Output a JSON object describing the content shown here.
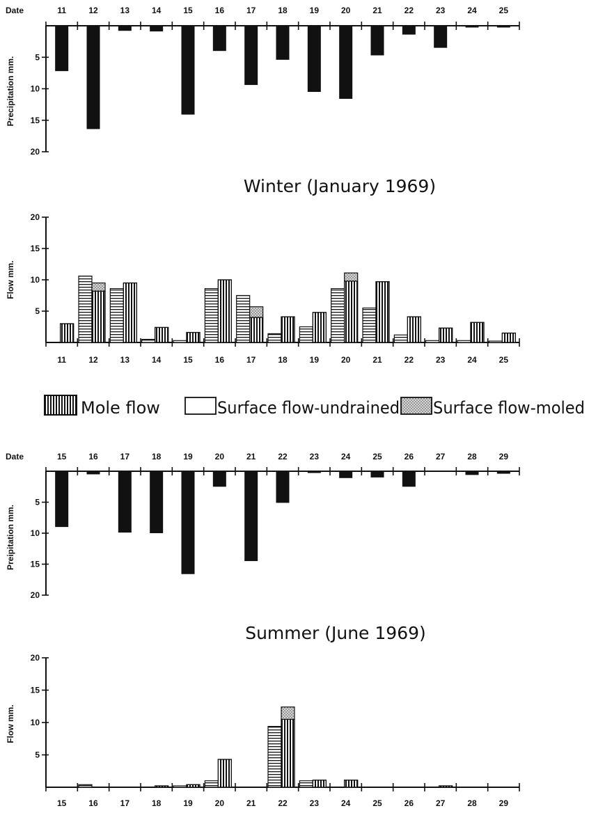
{
  "legend": {
    "mole_flow": "Mole flow",
    "surface_undrained": "Surface flow-undrained",
    "surface_moled": "Surface flow-moled"
  },
  "colors": {
    "ink": "#111111",
    "paper": "#ffffff",
    "stipple": "#9a9a9a"
  },
  "chart_data": [
    {
      "type": "bar",
      "panel": "winter-precipitation",
      "ylabel": "Precipitation mm.",
      "date_label": "Date",
      "categories": [
        "11",
        "12",
        "13",
        "14",
        "15",
        "16",
        "17",
        "18",
        "19",
        "20",
        "21",
        "22",
        "23",
        "24",
        "25"
      ],
      "values": [
        7.2,
        16.4,
        0.8,
        0.9,
        14.1,
        4.0,
        9.4,
        5.4,
        10.5,
        11.6,
        4.7,
        1.4,
        3.5,
        0.2,
        0.2
      ],
      "ylim": [
        0,
        20
      ],
      "yticks": [
        5,
        10,
        15,
        20
      ],
      "inverted": true,
      "grid": false
    },
    {
      "type": "bar",
      "panel": "winter-flow",
      "title": "Winter (January 1969)",
      "ylabel": "Flow mm.",
      "categories": [
        "11",
        "12",
        "13",
        "14",
        "15",
        "16",
        "17",
        "18",
        "19",
        "20",
        "21",
        "22",
        "23",
        "24",
        "25"
      ],
      "series": [
        {
          "name": "Surface flow-undrained",
          "values": [
            0,
            10.6,
            8.6,
            0.5,
            0.3,
            8.6,
            7.5,
            1.4,
            2.5,
            8.6,
            5.5,
            1.2,
            0.3,
            0.3,
            0.2
          ]
        },
        {
          "name": "Mole flow",
          "values": [
            3.0,
            8.2,
            9.5,
            2.4,
            1.6,
            10.0,
            4.0,
            4.1,
            4.8,
            9.8,
            9.7,
            4.1,
            2.3,
            3.2,
            1.5
          ]
        },
        {
          "name": "Surface flow-moled",
          "values": [
            0,
            1.3,
            0,
            0,
            0,
            0,
            1.7,
            0,
            0,
            1.3,
            0,
            0,
            0,
            0,
            0
          ]
        }
      ],
      "ylim": [
        0,
        20
      ],
      "yticks": [
        5,
        10,
        15,
        20
      ],
      "grid": false
    },
    {
      "type": "bar",
      "panel": "summer-precipitation",
      "ylabel": "Preipitation mm.",
      "date_label": "Date",
      "categories": [
        "15",
        "16",
        "17",
        "18",
        "19",
        "20",
        "21",
        "22",
        "23",
        "24",
        "25",
        "26",
        "27",
        "28",
        "29"
      ],
      "values": [
        9.0,
        0.5,
        9.9,
        10.0,
        16.6,
        2.5,
        14.5,
        5.1,
        0.2,
        1.1,
        1.0,
        2.5,
        0.0,
        0.6,
        0.4
      ],
      "ylim": [
        0,
        20
      ],
      "yticks": [
        5,
        10,
        15,
        20
      ],
      "inverted": true,
      "grid": false
    },
    {
      "type": "bar",
      "panel": "summer-flow",
      "title": "Summer (June 1969)",
      "ylabel": "Flow mm.",
      "categories": [
        "15",
        "16",
        "17",
        "18",
        "19",
        "20",
        "21",
        "22",
        "23",
        "24",
        "25",
        "26",
        "27",
        "28",
        "29"
      ],
      "series": [
        {
          "name": "Surface flow-undrained",
          "values": [
            0,
            0.4,
            0,
            0,
            0.2,
            1.0,
            0,
            9.4,
            1.0,
            0,
            0,
            0,
            0,
            0,
            0
          ]
        },
        {
          "name": "Mole flow",
          "values": [
            0,
            0,
            0,
            0.2,
            0.4,
            4.3,
            0,
            10.5,
            1.1,
            1.1,
            0,
            0,
            0.1,
            0,
            0
          ]
        },
        {
          "name": "Surface flow-moled",
          "values": [
            0,
            0,
            0,
            0,
            0,
            0,
            0,
            1.9,
            0,
            0,
            0,
            0,
            0,
            0,
            0
          ]
        }
      ],
      "ylim": [
        0,
        20
      ],
      "yticks": [
        5,
        10,
        15,
        20
      ],
      "grid": false
    }
  ]
}
